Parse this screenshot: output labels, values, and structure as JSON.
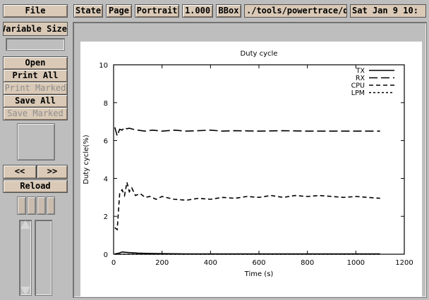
{
  "menu": {
    "file": "File"
  },
  "toolbar": {
    "state": "State",
    "page": "Page",
    "orientation": "Portrait",
    "magnification": "1.000",
    "bbox": "BBox",
    "filename": "./tools/powertrace/d",
    "date": "Sat Jan  9 10:"
  },
  "sidebar": {
    "size_mode": "Variable Size",
    "open": "Open",
    "print_all": "Print All",
    "print_marked": "Print Marked",
    "save_all": "Save All",
    "save_marked": "Save Marked",
    "prev": "<<",
    "next": ">>",
    "reload": "Reload"
  },
  "chart_data": {
    "type": "line",
    "title": "Duty cycle",
    "xlabel": "Time (s)",
    "ylabel": "Duty cycle(%)",
    "xlim": [
      0,
      1200
    ],
    "ylim": [
      0,
      10
    ],
    "xticks": [
      "0",
      "200",
      "400",
      "600",
      "800",
      "1000",
      "1200"
    ],
    "yticks": [
      "0",
      "2",
      "4",
      "6",
      "8",
      "10"
    ],
    "legend_position": "top-right",
    "series": [
      {
        "name": "TX",
        "dash": "solid",
        "x": [
          5,
          20,
          35,
          50,
          70,
          100,
          150,
          200,
          300,
          400,
          600,
          800,
          1000,
          1100
        ],
        "y": [
          0.02,
          0.05,
          0.12,
          0.1,
          0.08,
          0.06,
          0.04,
          0.03,
          0.02,
          0.02,
          0.02,
          0.02,
          0.02,
          0.02
        ]
      },
      {
        "name": "RX",
        "dash": "long-dash",
        "x": [
          5,
          15,
          25,
          35,
          45,
          55,
          65,
          80,
          100,
          130,
          160,
          200,
          250,
          300,
          350,
          400,
          450,
          500,
          600,
          700,
          800,
          900,
          1000,
          1100
        ],
        "y": [
          6.7,
          6.25,
          6.6,
          6.55,
          6.7,
          6.62,
          6.65,
          6.6,
          6.55,
          6.5,
          6.55,
          6.5,
          6.55,
          6.5,
          6.52,
          6.55,
          6.5,
          6.52,
          6.5,
          6.52,
          6.5,
          6.5,
          6.5,
          6.5
        ]
      },
      {
        "name": "CPU",
        "dash": "dash",
        "x": [
          5,
          15,
          25,
          35,
          45,
          55,
          65,
          75,
          90,
          110,
          130,
          150,
          175,
          200,
          250,
          300,
          350,
          400,
          450,
          500,
          550,
          600,
          650,
          700,
          750,
          800,
          850,
          900,
          950,
          1000,
          1050,
          1100
        ],
        "y": [
          1.4,
          1.3,
          3.2,
          3.4,
          3.1,
          3.8,
          3.3,
          3.5,
          3.1,
          3.2,
          3.0,
          3.05,
          2.9,
          3.05,
          2.9,
          2.85,
          2.95,
          2.9,
          3.0,
          2.95,
          3.05,
          3.0,
          3.1,
          3.0,
          3.1,
          3.05,
          3.1,
          3.05,
          3.0,
          3.05,
          3.0,
          2.95
        ]
      },
      {
        "name": "LPM",
        "dash": "short-dash",
        "x": [
          5,
          1100
        ],
        "y": [
          0,
          0
        ]
      }
    ]
  }
}
